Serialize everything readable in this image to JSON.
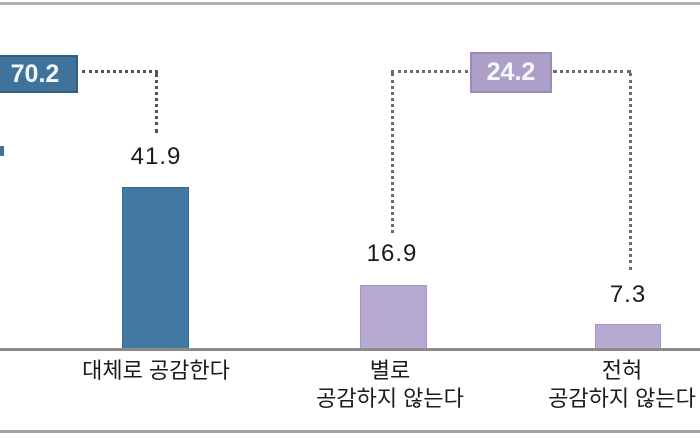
{
  "chart_data": {
    "type": "bar",
    "title": "",
    "xlabel": "",
    "ylabel": "",
    "grid": false,
    "legend": false,
    "axis_note": "y-axis hidden; values printed as data labels above bars; gray baseline at 0",
    "categories": [
      "대체로 공감한다",
      "별로 공감하지 않는다",
      "전혀 공감하지 않는다"
    ],
    "values": [
      41.9,
      16.9,
      7.3
    ],
    "category_lines": [
      [
        "대체로 공감한다"
      ],
      [
        "별로",
        "공감하지 않는다"
      ],
      [
        "전혀",
        "공감하지 않는다"
      ]
    ],
    "bar_colors": [
      "#4279a3",
      "#b6aad2",
      "#b6aad2"
    ],
    "callouts": [
      {
        "label": "70.2",
        "value": 70.2,
        "color": "#3f739c",
        "connects_to": [
          "대체로 공감한다"
        ]
      },
      {
        "label": "24.2",
        "value": 24.2,
        "color": "#aca0c8",
        "connects_to": [
          "별로 공감하지 않는다",
          "전혀 공감하지 않는다"
        ]
      }
    ]
  },
  "colors": {
    "agree_bar": "#4279a3",
    "agree_callout": "#3f739c",
    "disagree_bar": "#b6aad2",
    "disagree_callout": "#aca0c8",
    "axis_line": "#8b8b8b",
    "frame_line": "#a9a9a9",
    "value_text": "#1b1b1b",
    "callout_text": "#f4f8fb"
  }
}
